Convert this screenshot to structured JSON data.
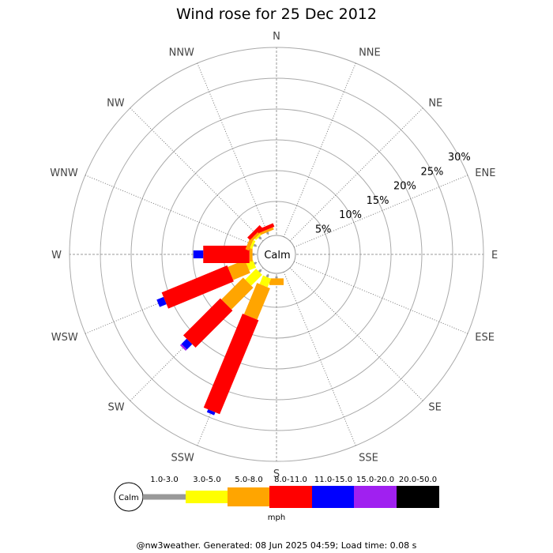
{
  "chart_data": {
    "type": "windrose",
    "title": "Wind rose for 25 Dec 2012",
    "directions": [
      "N",
      "NNE",
      "NE",
      "ENE",
      "E",
      "ESE",
      "SE",
      "SSE",
      "S",
      "SSW",
      "SW",
      "WSW",
      "W",
      "WNW",
      "NW",
      "NNW"
    ],
    "ring_labels": [
      "5%",
      "10%",
      "15%",
      "20%",
      "25%",
      "30%"
    ],
    "rlim": [
      0,
      30
    ],
    "calm_label": "Calm",
    "unit": "mph",
    "bins": [
      "1.0-3.0",
      "3.0-5.0",
      "5.0-8.0",
      "8.0-11.0",
      "11.0-15.0",
      "15.0-20.0",
      "20.0-50.0"
    ],
    "colors": [
      "#999999",
      "#ffff00",
      "#ffa500",
      "#ff0000",
      "#0000ff",
      "#a020f0",
      "#000000"
    ],
    "series": [
      {
        "direction": "N",
        "values": [
          0,
          0,
          0,
          0,
          0,
          0,
          0
        ]
      },
      {
        "direction": "NNE",
        "values": [
          0,
          0,
          0,
          0,
          0,
          0,
          0
        ]
      },
      {
        "direction": "NE",
        "values": [
          0,
          0,
          0,
          0,
          0,
          0,
          0
        ]
      },
      {
        "direction": "ENE",
        "values": [
          0,
          0,
          0,
          0,
          0,
          0,
          0
        ]
      },
      {
        "direction": "E",
        "values": [
          0,
          0,
          0,
          0,
          0,
          0,
          0
        ]
      },
      {
        "direction": "ESE",
        "values": [
          0,
          0,
          0,
          0,
          0,
          0,
          0
        ]
      },
      {
        "direction": "SE",
        "values": [
          0,
          0,
          0,
          0,
          0,
          0,
          0
        ]
      },
      {
        "direction": "SSE",
        "values": [
          0,
          0,
          0,
          0,
          0,
          0,
          0
        ]
      },
      {
        "direction": "S",
        "values": [
          0.3,
          0,
          1.1,
          0,
          0,
          0,
          0
        ]
      },
      {
        "direction": "SSW",
        "values": [
          0.4,
          1.5,
          5.5,
          16.5,
          0.5,
          0,
          0
        ]
      },
      {
        "direction": "SW",
        "values": [
          0.4,
          2.5,
          5.0,
          8.5,
          1.2,
          0.3,
          0
        ]
      },
      {
        "direction": "WSW",
        "values": [
          0.3,
          1.2,
          3.0,
          11.5,
          1.2,
          0,
          0
        ]
      },
      {
        "direction": "W",
        "values": [
          0.3,
          0,
          0.5,
          7.5,
          1.6,
          0,
          0
        ]
      },
      {
        "direction": "WNW",
        "values": [
          0.4,
          0.4,
          0.6,
          0,
          0,
          0,
          0
        ]
      },
      {
        "direction": "NW",
        "values": [
          0.4,
          0.3,
          0.4,
          0.6,
          0,
          0,
          0
        ]
      },
      {
        "direction": "NNW",
        "values": [
          0.3,
          0,
          0.4,
          0.6,
          0,
          0,
          0
        ]
      }
    ]
  },
  "footer": "@nw3weather. Generated: 08 Jun 2025 04:59; Load time: 0.08 s"
}
